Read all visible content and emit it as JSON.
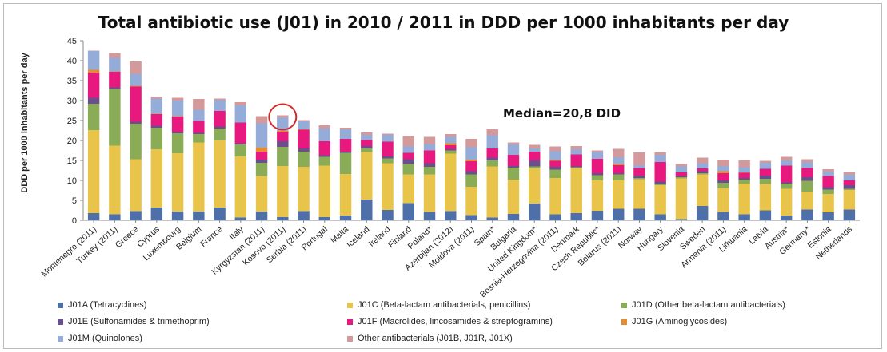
{
  "chart_data": {
    "type": "bar",
    "stacked": true,
    "title": "Total antibiotic use (J01) in 2010 / 2011 in DDD per 1000 inhabitants per day",
    "ylabel": "DDD per 1000 inhabitants per day",
    "xlabel": "",
    "ylim": [
      0,
      45
    ],
    "yticks": [
      0,
      5,
      10,
      15,
      20,
      25,
      30,
      35,
      40,
      45
    ],
    "grid": false,
    "legend_position": "bottom",
    "annotation": "Median=20,8 DID",
    "highlighted_category": "Kosovo (2011)",
    "categories": [
      "Montenegro (2011)",
      "Turkey (2011)",
      "Greece",
      "Cyprus",
      "Luxembourg",
      "Belgium",
      "France",
      "Italy",
      "Kyrgyzstan (2011)",
      "Kosovo (2011)",
      "Serbia (2011)",
      "Portugal",
      "Malta",
      "Iceland",
      "Ireland",
      "Finland",
      "Poland*",
      "Azerbijan (2012)",
      "Moldova (2011)",
      "Spain*",
      "Bulgaria",
      "United Kingdom*",
      "Bosnia-Herzegovina (2011)",
      "Denmark",
      "Czech Republic*",
      "Belarus (2011)",
      "Norway",
      "Hungary",
      "Slovenia",
      "Sweden",
      "Armenia (2011)",
      "Lithuania",
      "Latvia",
      "Austria*",
      "Germany*",
      "Estonia",
      "Netherlands"
    ],
    "series": [
      {
        "name": "J01A (Tetracyclines)",
        "color": "#4f6fa8",
        "values": [
          1.8,
          1.5,
          2.3,
          3.2,
          2.2,
          2.2,
          3.2,
          0.7,
          2.2,
          0.8,
          2.3,
          0.8,
          1.2,
          5.2,
          2.6,
          4.3,
          2.1,
          2.3,
          1.3,
          0.7,
          1.6,
          4.2,
          1.5,
          1.8,
          2.4,
          2.9,
          2.9,
          1.5,
          0.3,
          3.6,
          2.1,
          1.5,
          2.5,
          1.2,
          2.7,
          2.0,
          2.7
        ]
      },
      {
        "name": "J01C (Beta-lactam antibacterials, penicillins)",
        "color": "#e8c54a",
        "values": [
          20.8,
          17.2,
          13.0,
          14.6,
          14.6,
          17.3,
          16.8,
          15.3,
          8.9,
          12.8,
          11.1,
          12.9,
          10.4,
          11.9,
          11.7,
          7.2,
          9.4,
          14.4,
          7.1,
          12.8,
          8.6,
          8.8,
          9.1,
          11.2,
          7.6,
          7.1,
          7.4,
          7.3,
          10.2,
          7.9,
          6.0,
          7.7,
          6.6,
          6.7,
          4.5,
          4.6,
          4.9
        ]
      },
      {
        "name": "J01D (Other beta-lactam antibacterials)",
        "color": "#8aac57",
        "values": [
          6.6,
          14.2,
          8.9,
          5.4,
          5.0,
          2.1,
          3.0,
          3.0,
          3.3,
          4.8,
          3.8,
          2.2,
          5.3,
          0.9,
          1.2,
          2.6,
          1.9,
          0.8,
          3.1,
          1.5,
          3.0,
          0.5,
          2.1,
          0.3,
          1.3,
          1.5,
          0.3,
          0.3,
          0.3,
          0.3,
          1.3,
          1.0,
          1.3,
          1.3,
          2.7,
          1.1,
          0.3
        ]
      },
      {
        "name": "J01E (Sulfonamides & trimethoprim)",
        "color": "#6a4f8c",
        "values": [
          1.5,
          0.4,
          0.5,
          0.5,
          0.3,
          0.3,
          0.5,
          0.3,
          0.8,
          1.4,
          0.8,
          0.4,
          0.3,
          0.6,
          0.5,
          1.2,
          0.9,
          0.3,
          0.8,
          0.7,
          0.4,
          1.5,
          0.7,
          0.2,
          0.5,
          0.3,
          0.6,
          0.6,
          0.3,
          0.5,
          0.6,
          0.4,
          0.8,
          0.3,
          0.9,
          0.6,
          0.9
        ]
      },
      {
        "name": "J01F (Macrolides, lincosamides & streptogramins)",
        "color": "#e8197e",
        "values": [
          6.3,
          3.9,
          8.8,
          2.9,
          3.9,
          3.0,
          3.9,
          5.2,
          2.0,
          2.3,
          4.7,
          3.5,
          3.2,
          1.5,
          3.7,
          1.6,
          3.2,
          1.0,
          2.5,
          2.3,
          2.8,
          2.2,
          1.5,
          3.0,
          3.6,
          2.0,
          1.9,
          4.9,
          0.9,
          0.7,
          1.8,
          1.3,
          1.7,
          4.2,
          2.3,
          2.8,
          1.2
        ]
      },
      {
        "name": "J01G (Aminoglycosides)",
        "color": "#e68c2a",
        "values": [
          0.7,
          0.1,
          0.2,
          0.1,
          0.1,
          0.0,
          0.0,
          0.0,
          1.0,
          0.3,
          0.1,
          0.0,
          0.0,
          0.0,
          0.0,
          0.0,
          0.0,
          0.5,
          0.4,
          0.0,
          0.0,
          0.0,
          0.2,
          0.0,
          0.0,
          0.3,
          0.0,
          0.0,
          0.0,
          0.0,
          0.5,
          0.1,
          0.0,
          0.0,
          0.0,
          0.0,
          0.0
        ]
      },
      {
        "name": "J01M (Quinolones)",
        "color": "#95acd8",
        "values": [
          4.7,
          3.4,
          3.0,
          3.8,
          3.9,
          2.8,
          2.7,
          4.3,
          6.1,
          3.4,
          2.0,
          3.2,
          2.4,
          1.3,
          1.7,
          1.6,
          1.6,
          1.6,
          3.1,
          3.3,
          2.6,
          0.8,
          2.2,
          1.3,
          1.7,
          1.7,
          0.7,
          1.8,
          1.5,
          1.3,
          1.3,
          1.3,
          1.5,
          1.3,
          1.5,
          1.1,
          1.4
        ]
      },
      {
        "name": "Other antibacterials (J01B, J01R, J01X)",
        "color": "#d4999a",
        "values": [
          0.1,
          1.2,
          3.1,
          0.5,
          0.7,
          2.7,
          0.4,
          0.8,
          1.8,
          0.5,
          0.3,
          0.8,
          0.4,
          0.6,
          0.3,
          2.6,
          1.8,
          0.7,
          2.1,
          1.5,
          0.5,
          0.9,
          1.2,
          0.8,
          0.4,
          2.1,
          3.2,
          0.6,
          0.6,
          1.4,
          1.6,
          1.7,
          0.5,
          0.9,
          0.7,
          0.6,
          0.6
        ]
      }
    ]
  }
}
